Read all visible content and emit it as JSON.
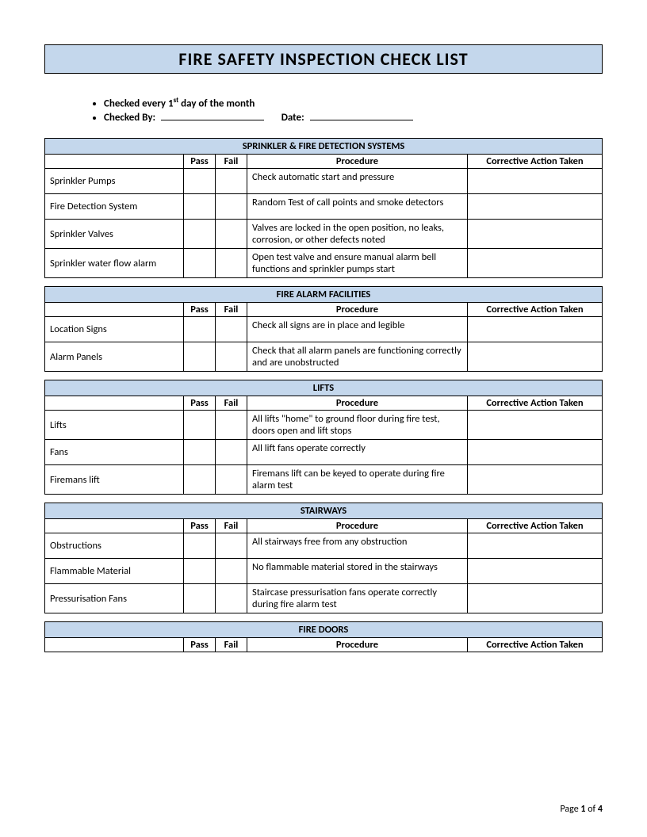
{
  "title": "FIRE SAFETY INSPECTION CHECK LIST",
  "bullets": {
    "line1_pre": "Checked every 1",
    "line1_sup": "st",
    "line1_post": " day of the month",
    "line2_label": "Checked By:",
    "line2_date": "Date:"
  },
  "columns": {
    "pass": "Pass",
    "fail": "Fail",
    "procedure": "Procedure",
    "action": "Corrective Action Taken"
  },
  "sections": [
    {
      "title": "SPRINKLER & FIRE DETECTION SYSTEMS",
      "rows": [
        {
          "item": "Sprinkler Pumps",
          "procedure": "Check automatic start and pressure"
        },
        {
          "item": "Fire Detection System",
          "procedure": "Random Test of call points and smoke detectors"
        },
        {
          "item": "Sprinkler Valves",
          "procedure": "Valves are locked in the open position, no leaks, corrosion, or other defects noted"
        },
        {
          "item": "Sprinkler water flow alarm",
          "procedure": "Open test valve and ensure manual alarm bell functions and sprinkler pumps start"
        }
      ]
    },
    {
      "title": "FIRE ALARM FACILITIES",
      "rows": [
        {
          "item": "Location Signs",
          "procedure": "Check all signs are in place and legible"
        },
        {
          "item": "Alarm Panels",
          "procedure": "Check that all alarm panels are functioning correctly and are unobstructed"
        }
      ]
    },
    {
      "title": "LIFTS",
      "rows": [
        {
          "item": "Lifts",
          "procedure": "All lifts \"home\" to ground floor during fire test, doors open and lift stops"
        },
        {
          "item": "Fans",
          "procedure": "All lift fans operate correctly"
        },
        {
          "item": "Firemans lift",
          "procedure": "Firemans lift can be keyed to operate during fire alarm test"
        }
      ]
    },
    {
      "title": "STAIRWAYS",
      "rows": [
        {
          "item": "Obstructions",
          "procedure": "All stairways free from any obstruction"
        },
        {
          "item": "Flammable Material",
          "procedure": "No flammable material stored in the stairways"
        },
        {
          "item": "Pressurisation Fans",
          "procedure": "Staircase pressurisation fans operate correctly during fire alarm test"
        }
      ]
    },
    {
      "title": "FIRE DOORS",
      "rows": []
    }
  ],
  "footer": {
    "pre": "Page ",
    "current": "1",
    "mid": " of ",
    "total": "4"
  },
  "colors": {
    "header_bg": "#c4d7ec",
    "border": "#000000",
    "text": "#000000"
  }
}
